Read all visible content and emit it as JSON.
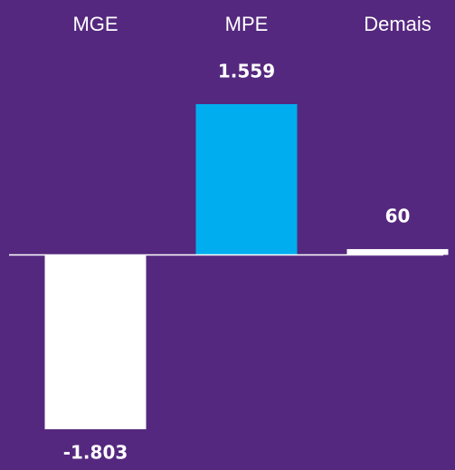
{
  "chart_data": {
    "type": "bar",
    "categories": [
      "MGE",
      "MPE",
      "Demais"
    ],
    "values": [
      -1803,
      1559,
      60
    ],
    "value_labels": [
      "-1.803",
      "1.559",
      "60"
    ],
    "colors": [
      "#ffffff",
      "#00aeef",
      "#ffffff"
    ]
  }
}
